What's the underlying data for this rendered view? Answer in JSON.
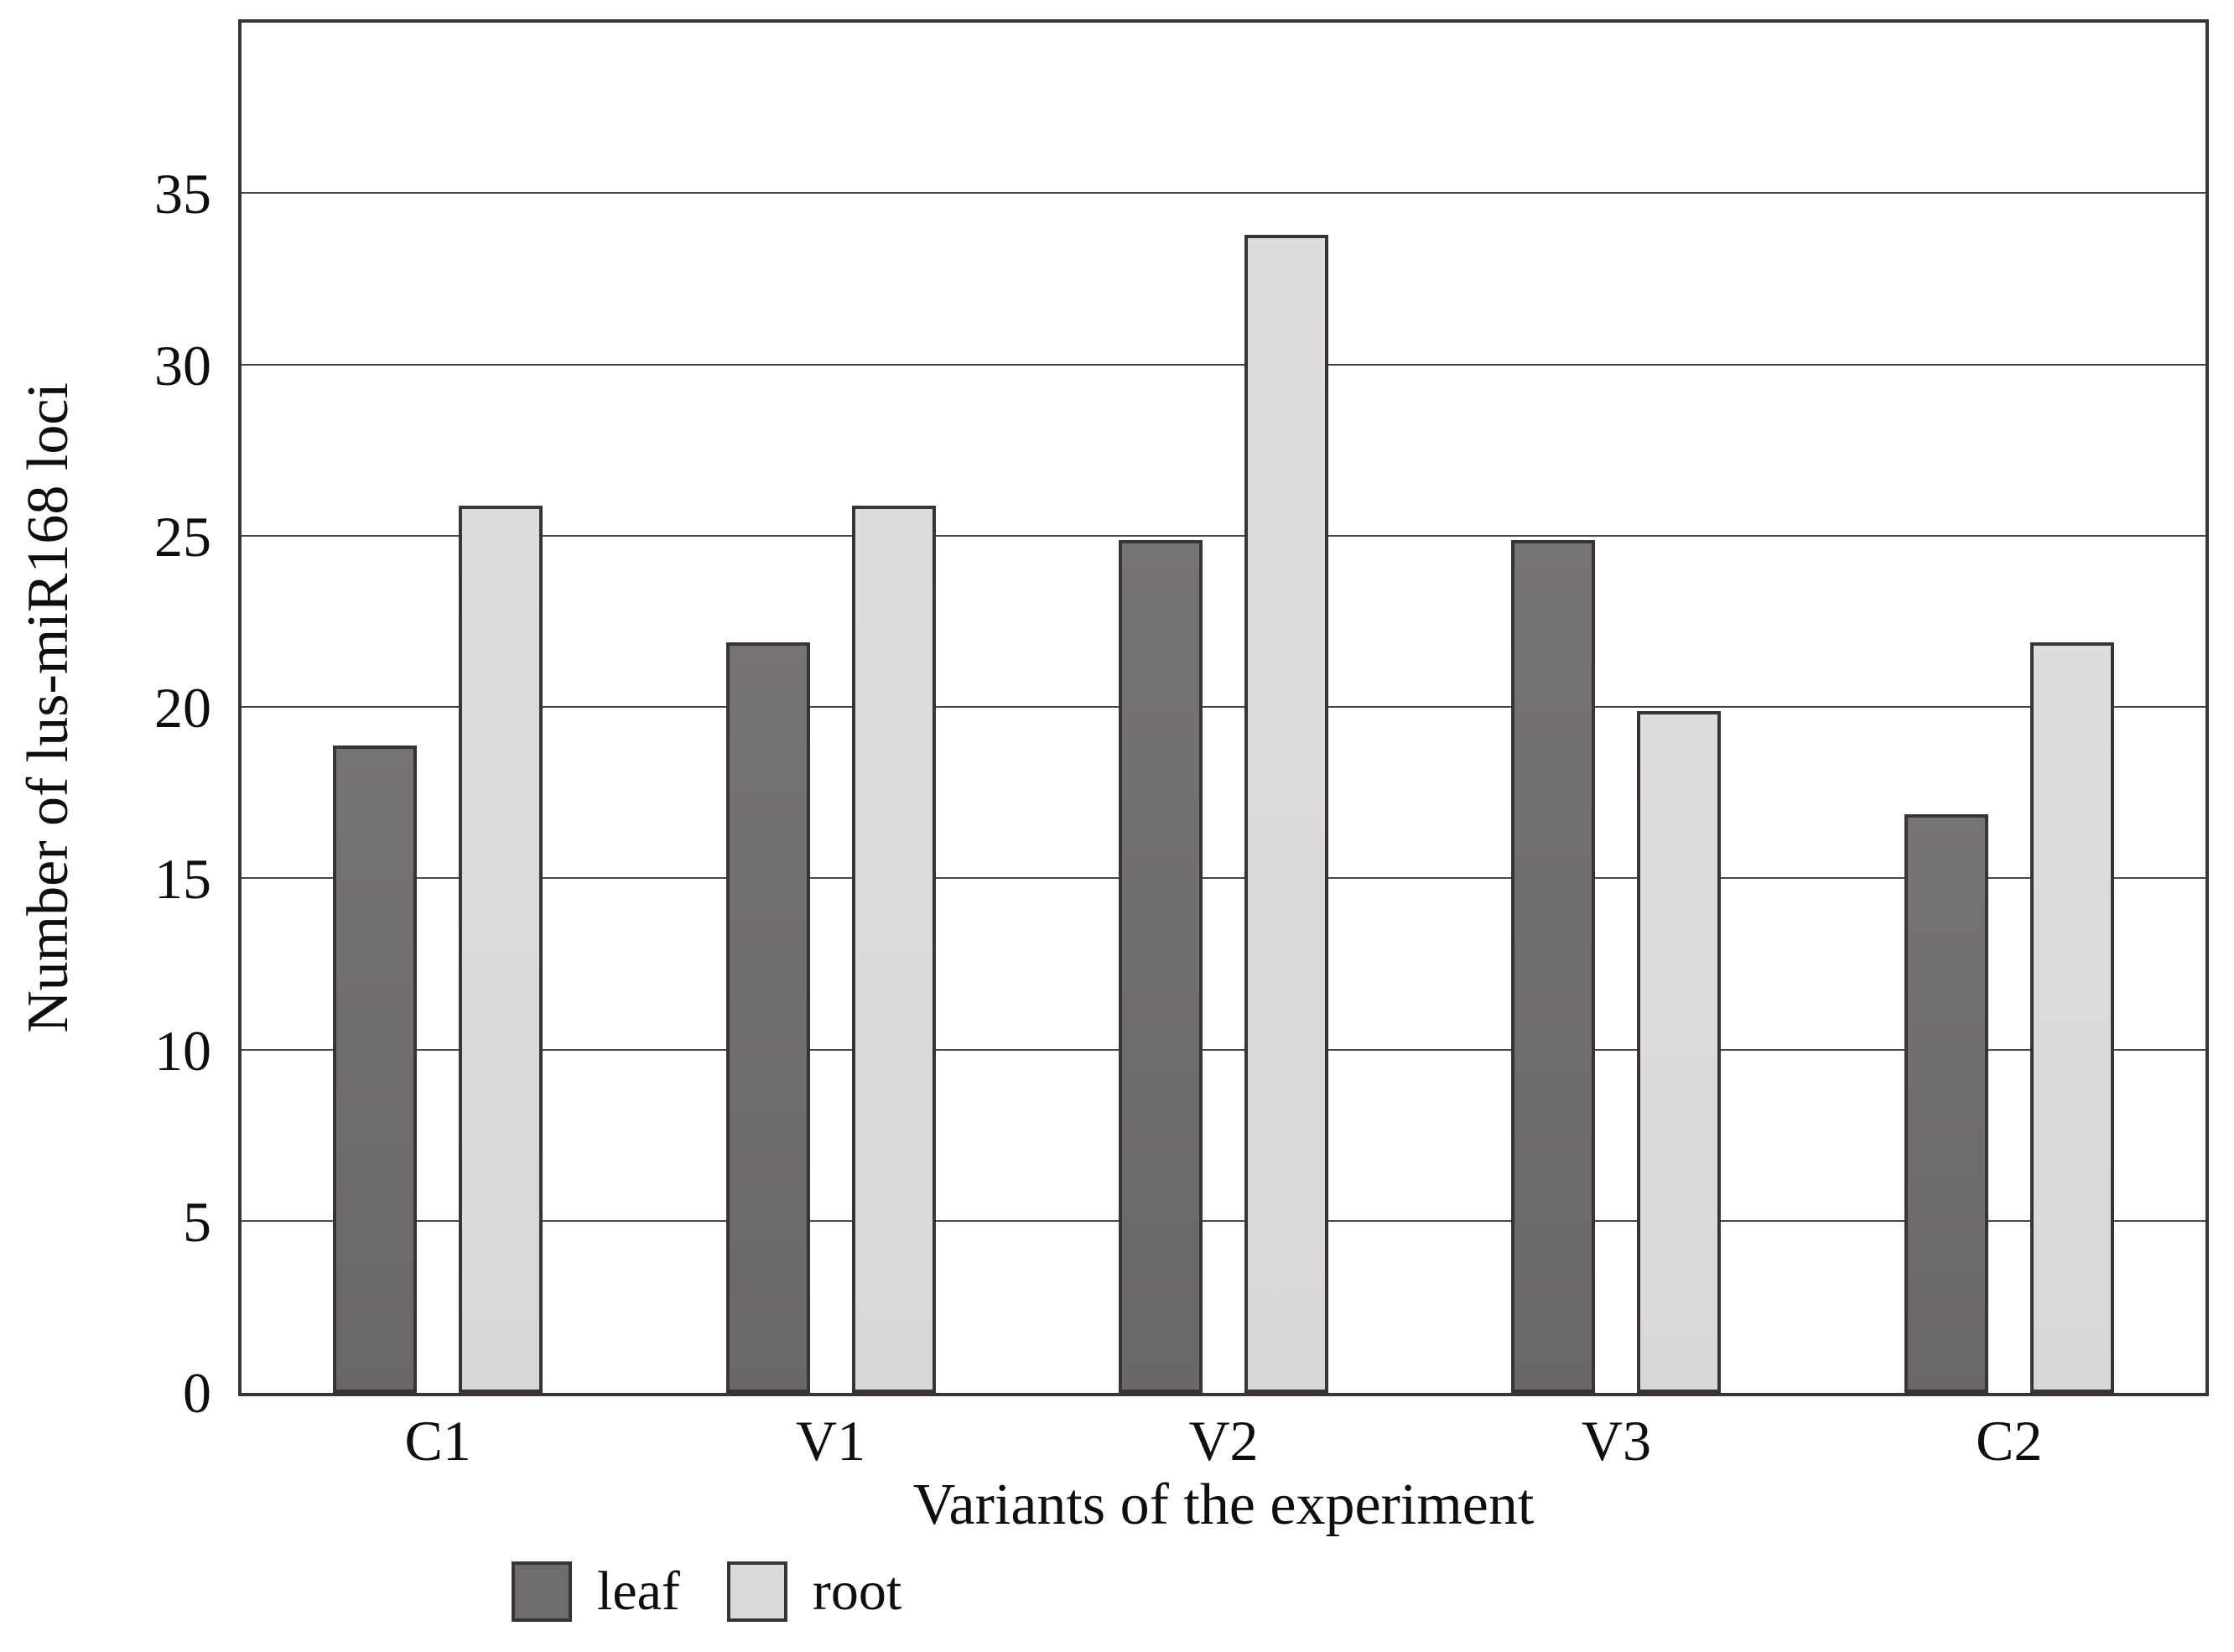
{
  "chart_data": {
    "type": "bar",
    "title": "",
    "categories": [
      "C1",
      "V1",
      "V2",
      "V3",
      "C2"
    ],
    "series": [
      {
        "name": "leaf",
        "color": "#6f6c6d",
        "values": [
          18.9,
          21.9,
          24.9,
          24.9,
          16.9
        ]
      },
      {
        "name": "root",
        "color": "#dbdada",
        "values": [
          25.9,
          25.9,
          33.8,
          19.9,
          21.9
        ]
      }
    ],
    "xlabel": "Variants of the experiment",
    "ylabel": "Number of lus-miR168 loci",
    "ylim": [
      0,
      40
    ],
    "yticks": [
      0,
      5,
      10,
      15,
      20,
      25,
      30,
      35
    ],
    "grid": "horizontal-only",
    "legend_position": "bottom-left",
    "colors": {
      "bar_border": "#3a3335",
      "frame_border": "#3a3335",
      "gridline": "#4c4748",
      "text": "#100d0e",
      "background": "#ffffff"
    }
  }
}
